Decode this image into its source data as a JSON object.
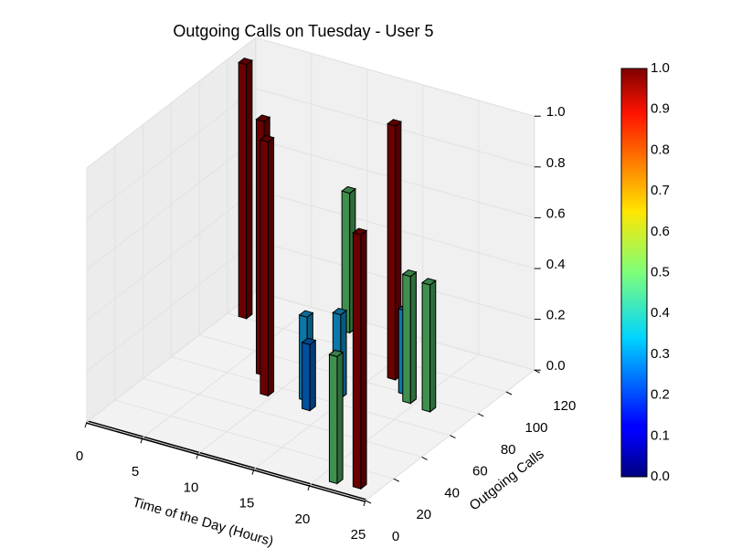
{
  "chart_data": {
    "type": "bar3d",
    "title": "Outgoing Calls on Tuesday - User 5",
    "xlabel": "Time of the Day (Hours)",
    "ylabel": "Outgoing Calls",
    "xlim": [
      0,
      25
    ],
    "ylim": [
      0,
      120
    ],
    "zlim": [
      0,
      1
    ],
    "xticks": [
      0,
      5,
      10,
      15,
      20,
      25
    ],
    "yticks": [
      0,
      20,
      40,
      60,
      80,
      100,
      120
    ],
    "zticks": [
      {
        "value": 0,
        "label": "0.0"
      },
      0.2,
      0.4,
      0.6,
      0.8,
      {
        "value": 1,
        "label": "1.0"
      }
    ],
    "grid": true,
    "bars": {
      "x": [
        1,
        7,
        9,
        16,
        23,
        9,
        12,
        13,
        14,
        21,
        19,
        21,
        18
      ],
      "y": [
        100,
        65,
        52,
        87,
        7,
        110,
        56,
        50,
        64,
        6,
        74,
        72,
        79
      ],
      "z": [
        1,
        1,
        1,
        1,
        1,
        0.55,
        0.33,
        0.26,
        0.33,
        0.5,
        0.5,
        0.5,
        0.33
      ],
      "colors": [
        "#6b0000",
        "#6b0000",
        "#6b0000",
        "#6b0000",
        "#6b0000",
        "#3f8f4f",
        "#0a78a8",
        "#0050a0",
        "#0a78a8",
        "#3f8f4f",
        "#3f8f4f",
        "#3f8f4f",
        "#0a78a8"
      ]
    },
    "colorbar": {
      "lim": [
        0,
        1
      ],
      "ticks": [
        {
          "value": 0,
          "label": "0.0"
        },
        0.1,
        0.2,
        0.3,
        0.4,
        0.5,
        0.6,
        0.7,
        0.8,
        0.9,
        {
          "value": 1,
          "label": "1.0"
        }
      ]
    }
  }
}
